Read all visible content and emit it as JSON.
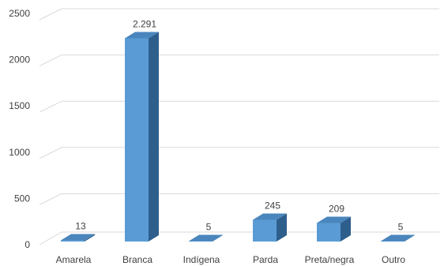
{
  "chart_data": {
    "type": "bar",
    "title": "",
    "xlabel": "",
    "ylabel": "",
    "categories": [
      "Amarela",
      "Branca",
      "Indígena",
      "Parda",
      "Preta/negra",
      "Outro"
    ],
    "values": [
      13,
      2291,
      5,
      245,
      209,
      5
    ],
    "data_labels": [
      "13",
      "2.291",
      "5",
      "245",
      "209",
      "5"
    ],
    "ylim": [
      0,
      2500
    ],
    "yticks": [
      0,
      500,
      1000,
      1500,
      2000,
      2500
    ],
    "grid": true,
    "legend": "none",
    "style": "3d-column",
    "colors": {
      "bar_front": "#5b9bd5",
      "bar_side": "#2e5f8c",
      "bar_top": "#4a86bd",
      "grid": "#d9d9d9"
    }
  }
}
